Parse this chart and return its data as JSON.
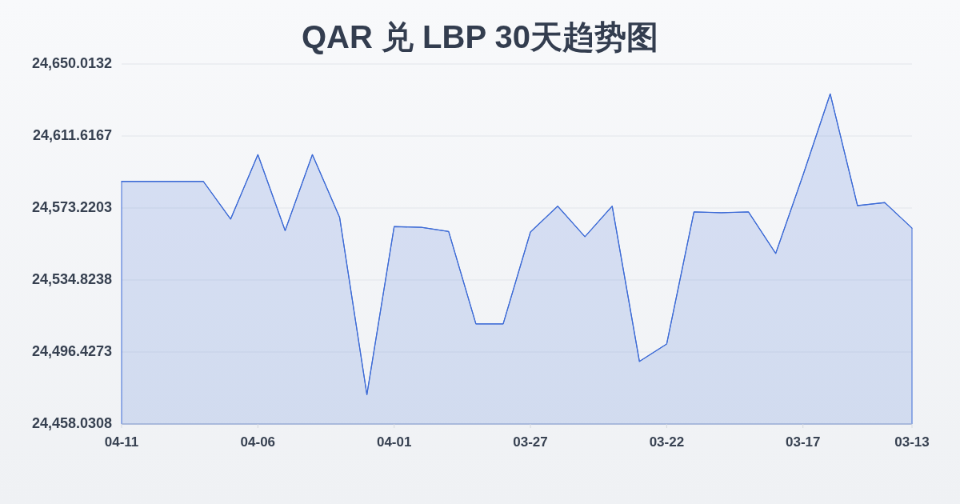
{
  "chart_data": {
    "type": "area",
    "title": "QAR 兑 LBP 30天趋势图",
    "categories": [
      "04-11",
      null,
      null,
      null,
      null,
      "04-06",
      null,
      null,
      null,
      null,
      "04-01",
      null,
      null,
      null,
      null,
      "03-27",
      null,
      null,
      null,
      null,
      "03-22",
      null,
      null,
      null,
      null,
      "03-17",
      null,
      null,
      null,
      "03-13"
    ],
    "series": [
      {
        "color": "#3d6bd6",
        "values": [
          24587.4,
          24587.4,
          24587.4,
          24587.4,
          24567.3,
          24601.7,
          24561.2,
          24601.7,
          24568.2,
          24473.7,
          24563.3,
          24562.9,
          24560.7,
          24511.4,
          24511.4,
          24560.4,
          24574.2,
          24557.9,
          24574.2,
          24491.4,
          24500.7,
          24571.1,
          24570.7,
          24571.1,
          24549.0,
          24590.7,
          24634.1,
          24574.5,
          24576.1,
          24562.5
        ]
      }
    ],
    "ylim": [
      24458.0308,
      24650.0132
    ],
    "yticks": [
      {
        "value": 24458.0308,
        "label": "24,458.0308"
      },
      {
        "value": 24496.4273,
        "label": "24,496.4273"
      },
      {
        "value": 24534.8238,
        "label": "24,534.8238"
      },
      {
        "value": 24573.2203,
        "label": "24,573.2203"
      },
      {
        "value": 24611.6167,
        "label": "24,611.6167"
      },
      {
        "value": 24650.0132,
        "label": "24,650.0132"
      }
    ],
    "grid": "y"
  }
}
